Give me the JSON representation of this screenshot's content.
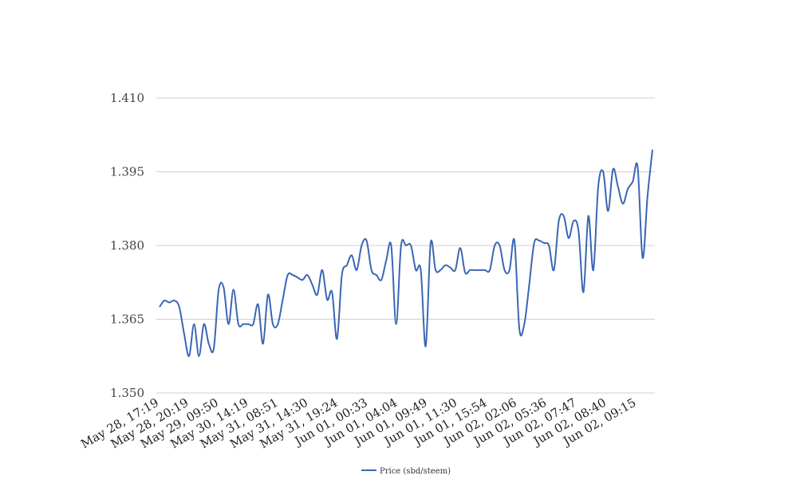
{
  "chart_data": {
    "type": "line",
    "title": "",
    "xlabel": "",
    "ylabel": "",
    "ylim": [
      1.35,
      1.41
    ],
    "y_ticks": [
      "1.410",
      "1.395",
      "1.380",
      "1.365",
      "1.350"
    ],
    "y_tick_values": [
      1.41,
      1.395,
      1.38,
      1.365,
      1.35
    ],
    "grid": "horizontal",
    "legend_position": "bottom",
    "x_tick_labels": [
      "May 28, 17:19",
      "May 28, 20:19",
      "May 29, 09:50",
      "May 30, 14:19",
      "May 31, 08:51",
      "May 31, 14:30",
      "May 31, 19:24",
      "Jun 01, 00:33",
      "Jun 01, 04:04",
      "Jun 01, 09:49",
      "Jun 01, 11:30",
      "Jun 01, 15:54",
      "Jun 02, 02:06",
      "Jun 02, 05:36",
      "Jun 02, 07:47",
      "Jun 02, 08:40",
      "Jun 02, 09:15"
    ],
    "series": [
      {
        "name": "Price (sbd/steem)",
        "color": "#3a66b5",
        "values": [
          1.3675,
          1.3688,
          1.3684,
          1.3688,
          1.3675,
          1.362,
          1.3575,
          1.364,
          1.3575,
          1.364,
          1.36,
          1.359,
          1.371,
          1.3715,
          1.364,
          1.371,
          1.364,
          1.364,
          1.364,
          1.364,
          1.368,
          1.36,
          1.37,
          1.364,
          1.364,
          1.369,
          1.374,
          1.374,
          1.3735,
          1.373,
          1.374,
          1.372,
          1.37,
          1.375,
          1.369,
          1.3705,
          1.361,
          1.374,
          1.376,
          1.378,
          1.375,
          1.38,
          1.381,
          1.375,
          1.374,
          1.373,
          1.377,
          1.38,
          1.364,
          1.38,
          1.38,
          1.38,
          1.375,
          1.375,
          1.3595,
          1.3805,
          1.375,
          1.375,
          1.376,
          1.3755,
          1.375,
          1.3795,
          1.3745,
          1.375,
          1.375,
          1.375,
          1.375,
          1.375,
          1.38,
          1.38,
          1.375,
          1.375,
          1.381,
          1.363,
          1.364,
          1.372,
          1.3805,
          1.381,
          1.3805,
          1.38,
          1.375,
          1.385,
          1.386,
          1.3815,
          1.385,
          1.383,
          1.3705,
          1.386,
          1.375,
          1.392,
          1.395,
          1.387,
          1.3955,
          1.392,
          1.3885,
          1.3915,
          1.393,
          1.396,
          1.3775,
          1.39,
          1.3995
        ]
      }
    ]
  }
}
